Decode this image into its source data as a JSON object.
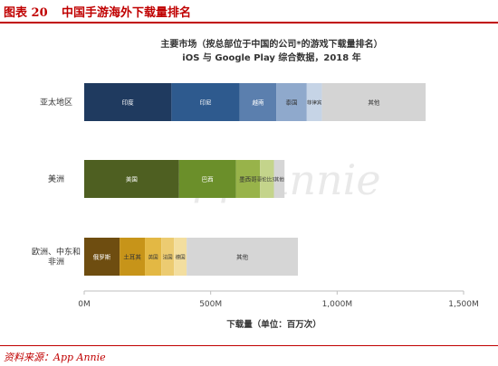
{
  "header": {
    "label": "图表 20",
    "title": "中国手游海外下载量排名"
  },
  "footer": {
    "source": "资料来源：App Annie"
  },
  "watermark": "App Annie",
  "chart_data": {
    "type": "bar",
    "orientation": "horizontal",
    "stacked": true,
    "title": "主要市场（按总部位于中国的公司*的游戏下载量排名）",
    "subtitle": "iOS 与 Google Play 综合数据，2018 年",
    "xlabel": "下载量（单位：百万次）",
    "xlim": [
      0,
      1500
    ],
    "xticks": [
      {
        "value": 0,
        "label": "0M"
      },
      {
        "value": 500,
        "label": "500M"
      },
      {
        "value": 1000,
        "label": "1,000M"
      },
      {
        "value": 1500,
        "label": "1,500M"
      }
    ],
    "grid": false,
    "categories": [
      {
        "name": "亚太地区",
        "segments": [
          {
            "label": "印度",
            "value": 345,
            "color": "#1f3a5f"
          },
          {
            "label": "印尼",
            "value": 270,
            "color": "#2e5a8e"
          },
          {
            "label": "越南",
            "value": 145,
            "color": "#5b7fae"
          },
          {
            "label": "泰国",
            "value": 120,
            "color": "#8fa9cc"
          },
          {
            "label": "菲律宾",
            "value": 60,
            "color": "#c6d4e6"
          },
          {
            "label": "其他",
            "value": 410,
            "color": "#d4d4d4"
          }
        ]
      },
      {
        "name": "美洲",
        "segments": [
          {
            "label": "美国",
            "value": 375,
            "color": "#4e5f21"
          },
          {
            "label": "巴西",
            "value": 225,
            "color": "#6b8f2a"
          },
          {
            "label": "墨西哥",
            "value": 95,
            "color": "#98b34a"
          },
          {
            "label": "哥伦比亚",
            "value": 55,
            "color": "#c4d48b"
          },
          {
            "label": "其他",
            "value": 42,
            "color": "#d6d6d6"
          }
        ]
      },
      {
        "name": "欧洲、中东和非洲",
        "segments": [
          {
            "label": "俄罗斯",
            "value": 140,
            "color": "#6e4d10"
          },
          {
            "label": "土耳其",
            "value": 100,
            "color": "#c79419"
          },
          {
            "label": "英国",
            "value": 65,
            "color": "#e3b844"
          },
          {
            "label": "法国",
            "value": 50,
            "color": "#eccb71"
          },
          {
            "label": "德国",
            "value": 50,
            "color": "#f3de9f"
          },
          {
            "label": "其他",
            "value": 440,
            "color": "#d6d6d6"
          }
        ]
      }
    ]
  }
}
